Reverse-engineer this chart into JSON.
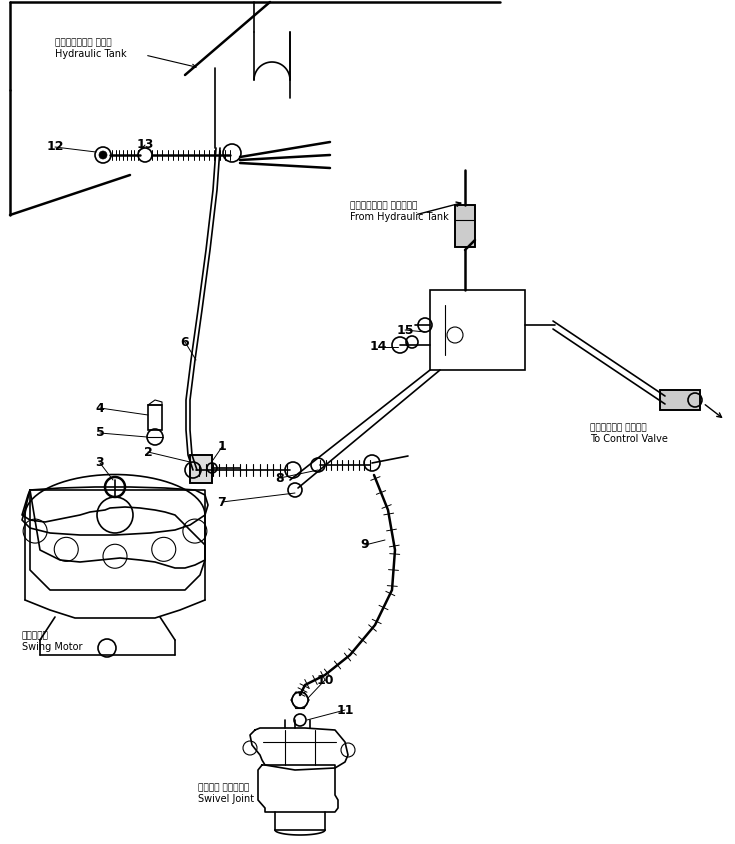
{
  "background_color": "#ffffff",
  "line_color": "#000000",
  "labels": {
    "hydraulic_tank_jp": "ハイドロリック タンク",
    "hydraulic_tank_en": "Hydraulic Tank",
    "from_hydraulic_tank_jp": "ハイドロリック タンクから",
    "from_hydraulic_tank_en": "From Hydraulic Tank",
    "to_control_valve_jp": "コントロール バルブへ",
    "to_control_valve_en": "To Control Valve",
    "swing_motor_jp": "旋回モータ",
    "swing_motor_en": "Swing Motor",
    "swivel_joint_jp": "スイベル ジョイント",
    "swivel_joint_en": "Swivel Joint"
  },
  "part_numbers": [
    1,
    2,
    3,
    4,
    5,
    6,
    7,
    8,
    9,
    10,
    11,
    12,
    13,
    14,
    15
  ]
}
